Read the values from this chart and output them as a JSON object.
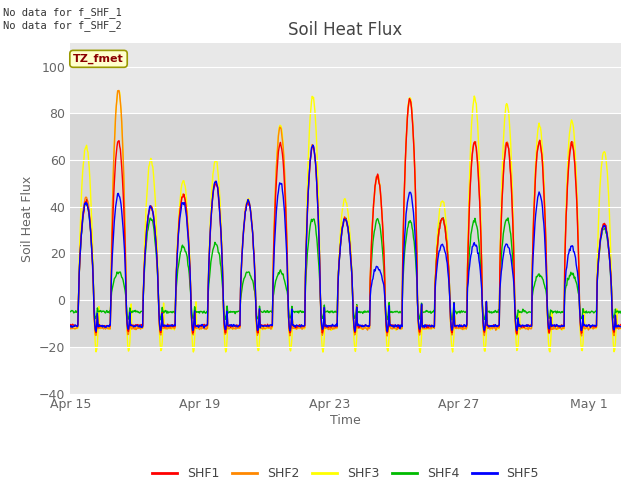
{
  "title": "Soil Heat Flux",
  "xlabel": "Time",
  "ylabel": "Soil Heat Flux",
  "ylim": [
    -40,
    110
  ],
  "yticks": [
    -40,
    -20,
    0,
    20,
    40,
    60,
    80,
    100
  ],
  "gray_band_ymin": -20,
  "gray_band_ymax": 80,
  "annotation_top_left": "No data for f_SHF_1\nNo data for f_SHF_2",
  "tz_label": "TZ_fmet",
  "legend_entries": [
    "SHF1",
    "SHF2",
    "SHF3",
    "SHF4",
    "SHF5"
  ],
  "line_colors": [
    "#ff0000",
    "#ff8800",
    "#ffff00",
    "#00bb00",
    "#0000ff"
  ],
  "background_color": "#ffffff",
  "plot_bg_color": "#e8e8e8",
  "xtick_labels": [
    "Apr 15",
    "Apr 19",
    "Apr 23",
    "Apr 27",
    "May 1"
  ],
  "xtick_days": [
    0,
    4,
    8,
    12,
    16
  ],
  "n_days": 17
}
